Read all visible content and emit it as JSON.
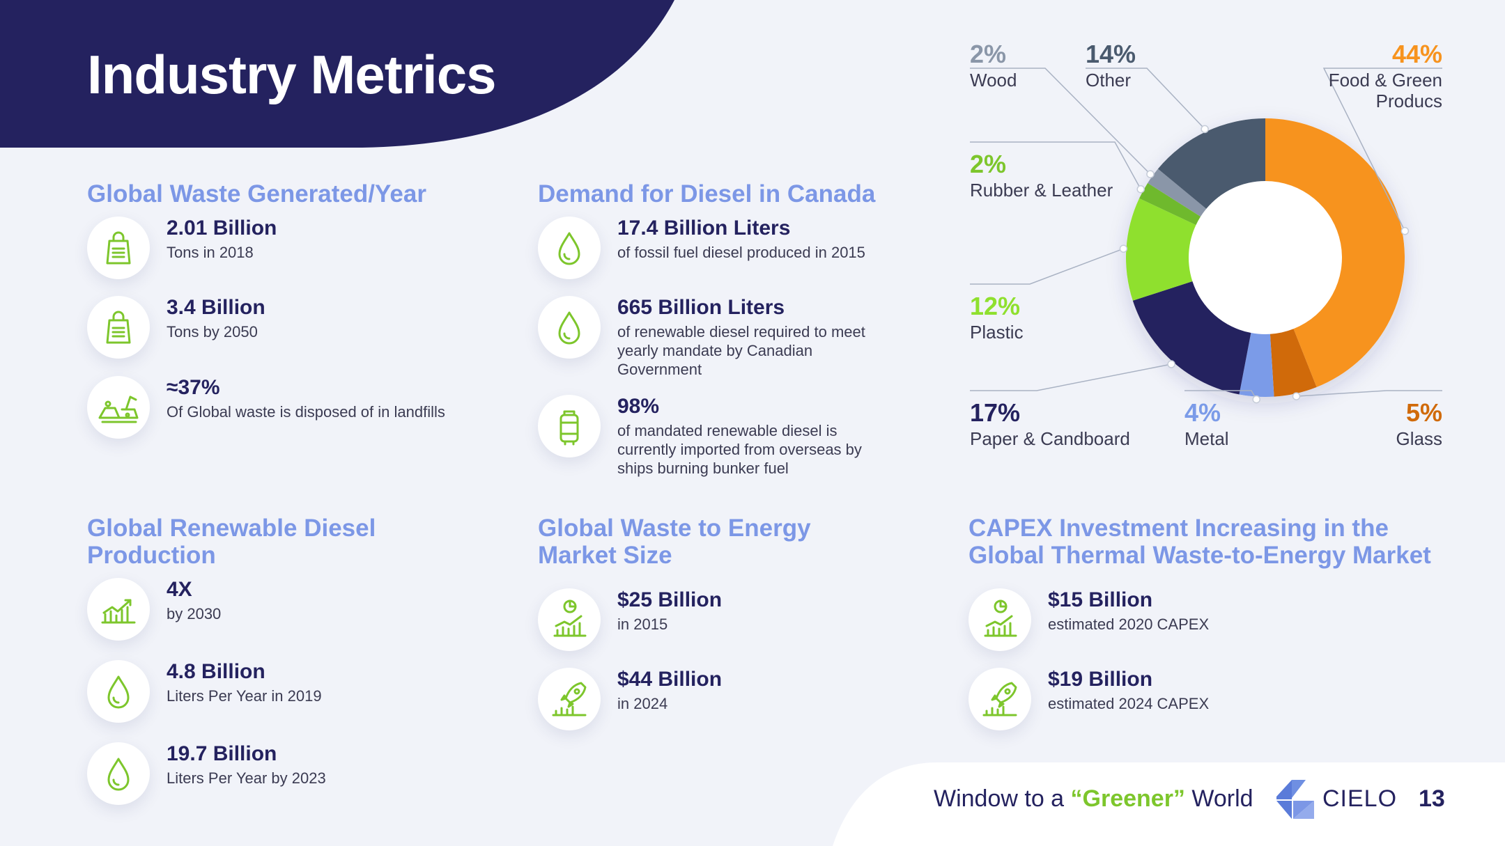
{
  "header": {
    "title": "Industry Metrics"
  },
  "sections": {
    "waste": {
      "title": "Global Waste Generated/Year",
      "items": [
        {
          "value": "2.01 Billion",
          "desc": "Tons in 2018",
          "icon": "shopping-bag-icon"
        },
        {
          "value": "3.4 Billion",
          "desc": "Tons by 2050",
          "icon": "shopping-bag-icon"
        },
        {
          "value": "≈37%",
          "desc": "Of Global waste is disposed of in landfills",
          "icon": "landfill-icon"
        }
      ]
    },
    "diesel_canada": {
      "title": "Demand for Diesel in Canada",
      "items": [
        {
          "value": "17.4 Billion Liters",
          "desc": "of fossil fuel diesel produced in 2015",
          "icon": "drop-icon"
        },
        {
          "value": "665 Billion Liters",
          "desc": "of renewable diesel required to meet yearly mandate by Canadian Government",
          "icon": "drop-icon"
        },
        {
          "value": "98%",
          "desc": "of mandated renewable diesel is currently imported from overseas by ships burning bunker fuel",
          "icon": "fuel-barrel-icon"
        }
      ]
    },
    "renewable": {
      "title": "Global Renewable Diesel Production",
      "items": [
        {
          "value": "4X",
          "desc": "by 2030",
          "icon": "growth-chart-icon"
        },
        {
          "value": "4.8 Billion",
          "desc": "Liters Per Year in 2019",
          "icon": "drop-icon"
        },
        {
          "value": "19.7 Billion",
          "desc": "Liters Per Year by 2023",
          "icon": "drop-icon"
        }
      ]
    },
    "wte_market": {
      "title": "Global Waste to Energy Market Size",
      "items": [
        {
          "value": "$25 Billion",
          "desc": "in 2015",
          "icon": "market-chart-icon"
        },
        {
          "value": "$44 Billion",
          "desc": "in 2024",
          "icon": "rocket-growth-icon"
        }
      ]
    },
    "capex": {
      "title": "CAPEX Investment Increasing in the Global Thermal Waste-to-Energy Market",
      "items": [
        {
          "value": "$15 Billion",
          "desc": "estimated 2020 CAPEX",
          "icon": "market-chart-icon"
        },
        {
          "value": "$19 Billion",
          "desc": "estimated 2024 CAPEX",
          "icon": "rocket-growth-icon"
        }
      ]
    }
  },
  "chart_data": {
    "type": "pie",
    "variant": "donut",
    "categories": [
      "Food & Green Producs",
      "Glass",
      "Metal",
      "Paper & Candboard",
      "Plastic",
      "Rubber & Leather",
      "Wood",
      "Other"
    ],
    "values": [
      44,
      5,
      4,
      17,
      12,
      2,
      2,
      14
    ],
    "labels": [
      "44%",
      "5%",
      "4%",
      "17%",
      "12%",
      "2%",
      "2%",
      "14%"
    ],
    "colors": [
      "#f7931e",
      "#d06a0a",
      "#7b9be8",
      "#24225f",
      "#8fe02e",
      "#6fb92d",
      "#8a96a8",
      "#4a5a6e"
    ],
    "label_colors": [
      "#f7931e",
      "#d06a0a",
      "#7b9be8",
      "#24225f",
      "#8fe02e",
      "#7dc62c",
      "#8a96a8",
      "#4a5a6e"
    ]
  },
  "footer": {
    "tagline_pre": "Window to a ",
    "tagline_highlight": "“Greener”",
    "tagline_post": " World",
    "brand": "CIELO",
    "page_number": "13"
  },
  "colors": {
    "navy": "#24225f",
    "accent_blue": "#7c97e6",
    "green": "#7dc62c",
    "background": "#f1f3f9"
  }
}
